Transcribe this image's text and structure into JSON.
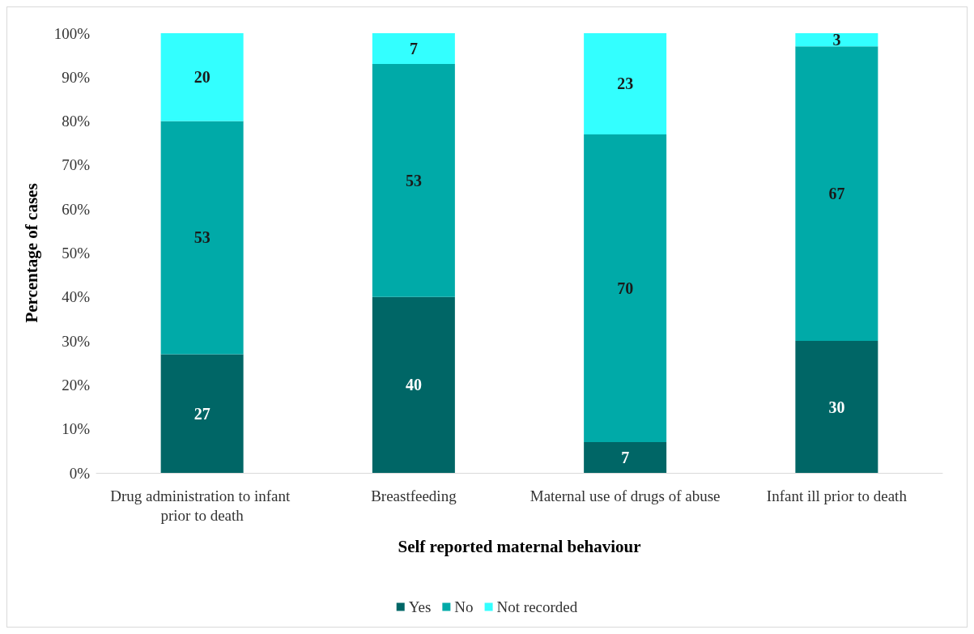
{
  "chart_data": {
    "type": "bar",
    "stacked": true,
    "xlabel": "Self reported maternal behaviour",
    "ylabel": "Percentage of cases",
    "categories": [
      "Drug administration to infant prior to death",
      "Breastfeeding",
      "Maternal use of drugs of abuse",
      "Infant ill prior to death"
    ],
    "series": [
      {
        "name": "Yes",
        "color": "#006666",
        "values": [
          27,
          40,
          7,
          30
        ]
      },
      {
        "name": "No",
        "color": "#00aaa8",
        "values": [
          53,
          53,
          70,
          67
        ]
      },
      {
        "name": "Not recorded",
        "color": "#33ffff",
        "values": [
          20,
          7,
          23,
          3
        ]
      }
    ],
    "ylim": [
      0,
      100
    ],
    "yticks": [
      {
        "value": 0,
        "label": "0%"
      },
      {
        "value": 10,
        "label": "10%"
      },
      {
        "value": 20,
        "label": "20%"
      },
      {
        "value": 30,
        "label": "30%"
      },
      {
        "value": 40,
        "label": "40%"
      },
      {
        "value": 50,
        "label": "50%"
      },
      {
        "value": 60,
        "label": "60%"
      },
      {
        "value": 70,
        "label": "70%"
      },
      {
        "value": 80,
        "label": "80%"
      },
      {
        "value": 90,
        "label": "90%"
      },
      {
        "value": 100,
        "label": "100%"
      }
    ],
    "grid": false,
    "legend": "bottom",
    "data_labels": true
  }
}
